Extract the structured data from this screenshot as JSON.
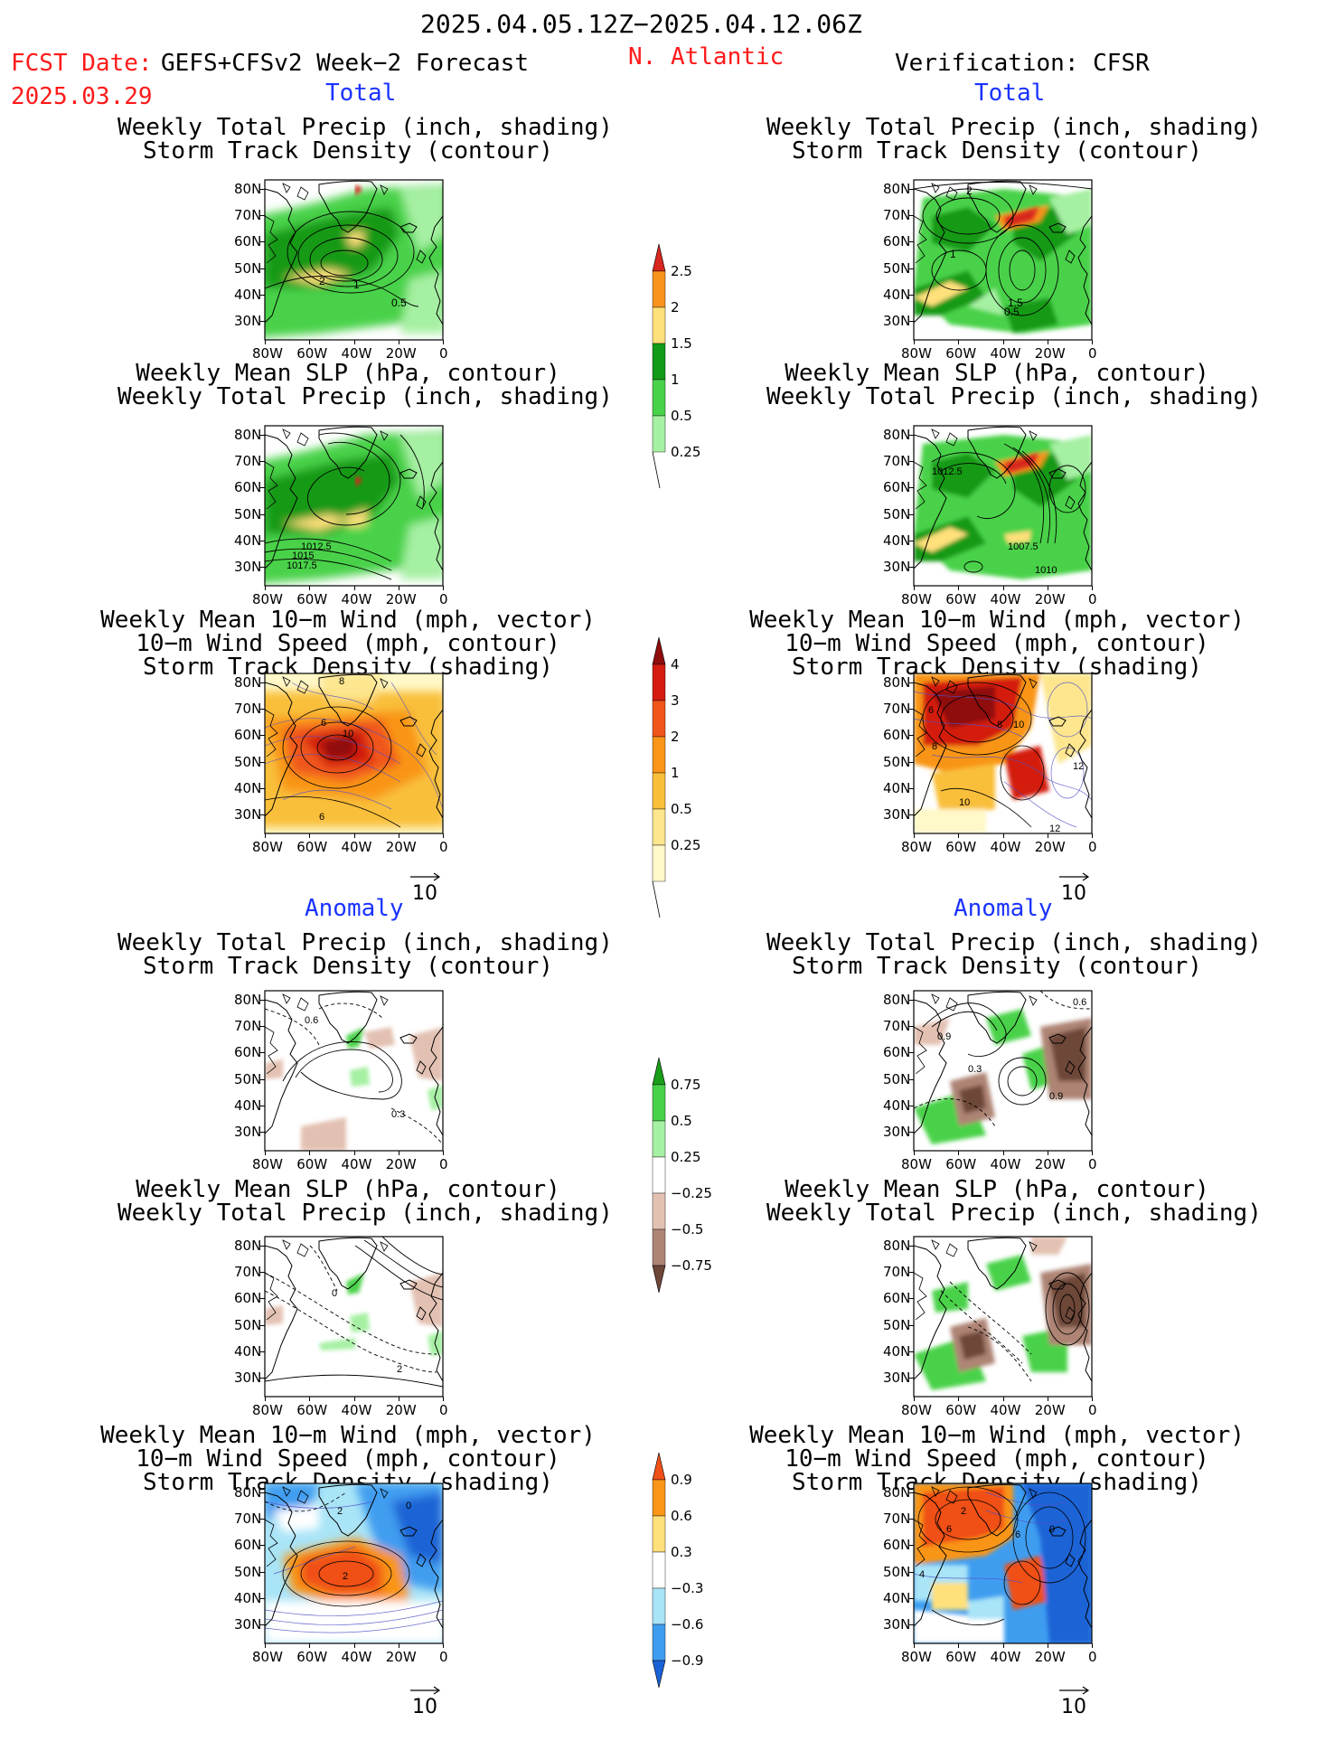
{
  "header": {
    "period": "2025.04.05.12Z−2025.04.12.06Z",
    "fcst_label": "FCST Date:",
    "model": "GEFS+CFSv2 Week−2 Forecast",
    "fcst_date": "2025.03.29",
    "region": "N. Atlantic",
    "verification": "Verification: CFSR"
  },
  "columns": {
    "left_total": "Total",
    "right_total": "Total",
    "left_anomaly": "Anomaly",
    "right_anomaly": "Anomaly"
  },
  "panel_titles": {
    "precip_storm": [
      "Weekly Total Precip (inch, shading)",
      "Storm Track Density (contour)"
    ],
    "slp_precip": [
      "Weekly Mean SLP (hPa, contour)",
      "Weekly Total Precip (inch, shading)"
    ],
    "wind_storm": [
      "Weekly Mean 10−m Wind (mph, vector)",
      "10−m Wind Speed (mph, contour)",
      "Storm Track Density (shading)"
    ]
  },
  "axes": {
    "lat_ticks": [
      "80N",
      "70N",
      "60N",
      "50N",
      "40N",
      "30N"
    ],
    "lon_ticks": [
      "80W",
      "60W",
      "40W",
      "20W",
      "0"
    ]
  },
  "vector_scale": "10",
  "contour_labels": {
    "r1_left": [
      "2",
      "1",
      "0.5"
    ],
    "r1_right": [
      "2",
      "1",
      "1.5",
      "0.5"
    ],
    "r2_left": [
      "1012.5",
      "1015",
      "1017.5"
    ],
    "r2_right": [
      "1012.5",
      "1007.5",
      "1010"
    ],
    "r3_left": [
      "8",
      "6",
      "10",
      "6"
    ],
    "r3_right": [
      "6",
      "8",
      "10",
      "8",
      "12",
      "10",
      "12"
    ],
    "r4_left": [
      "0.6",
      "0.3"
    ],
    "r4_right": [
      "0.9",
      "0.3",
      "0.6",
      "0.9"
    ],
    "r5_left": [
      "0",
      "2"
    ],
    "r6_left": [
      "2",
      "0",
      "2"
    ],
    "r6_right": [
      "2",
      "6",
      "6",
      "4",
      "0"
    ]
  },
  "colorbars": {
    "precip_total": {
      "labels": [
        "2.5",
        "2",
        "1.5",
        "1",
        "0.5",
        "0.25"
      ],
      "colors": [
        "#d7261e",
        "#f7931e",
        "#ffe07a",
        "#139a19",
        "#48d24a",
        "#a6f0a3"
      ]
    },
    "storm_total": {
      "labels": [
        "4",
        "3",
        "2",
        "1",
        "0.5",
        "0.25"
      ],
      "colors": [
        "#8f0c0c",
        "#d41d10",
        "#f0561a",
        "#f99519",
        "#f9bf3b",
        "#fde68e",
        "#fff8c8"
      ]
    },
    "precip_anom": {
      "labels": [
        "0.75",
        "0.5",
        "0.25",
        "−0.25",
        "−0.5",
        "−0.75"
      ],
      "colors": [
        "#1a9e1a",
        "#48d24a",
        "#a6f0a3",
        "#ffffff",
        "#e3c1b2",
        "#ae8475",
        "#6d4638"
      ]
    },
    "storm_anom": {
      "labels": [
        "0.9",
        "0.6",
        "0.3",
        "−0.3",
        "−0.6",
        "−0.9"
      ],
      "colors": [
        "#f05018",
        "#f99519",
        "#ffe07a",
        "#ffffff",
        "#a9e4f7",
        "#3f9df0",
        "#1a63d6"
      ]
    }
  }
}
